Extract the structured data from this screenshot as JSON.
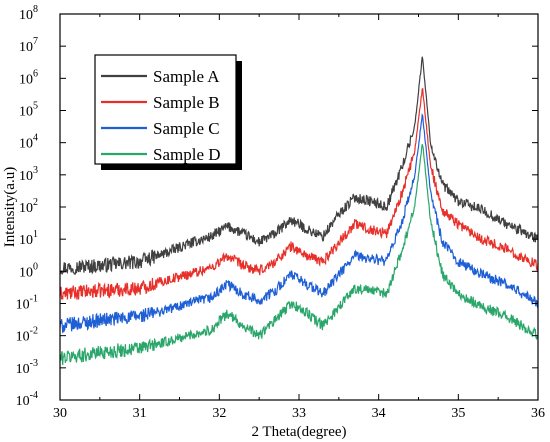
{
  "chart_data": {
    "type": "line",
    "title": "",
    "xlabel": "2 Theta(degree)",
    "ylabel": "Intensity(a.u)",
    "xlim": [
      30,
      36
    ],
    "ylim_log10": [
      -4,
      8
    ],
    "yscale": "log",
    "grid": false,
    "legend_position": "top-left",
    "x_ticks": [
      "30",
      "31",
      "32",
      "33",
      "34",
      "35",
      "36"
    ],
    "y_ticks": [
      {
        "base": "10",
        "exp": "-4"
      },
      {
        "base": "10",
        "exp": "-3"
      },
      {
        "base": "10",
        "exp": "-2"
      },
      {
        "base": "10",
        "exp": "-1"
      },
      {
        "base": "10",
        "exp": "0"
      },
      {
        "base": "10",
        "exp": "1"
      },
      {
        "base": "10",
        "exp": "2"
      },
      {
        "base": "10",
        "exp": "3"
      },
      {
        "base": "10",
        "exp": "4"
      },
      {
        "base": "10",
        "exp": "5"
      },
      {
        "base": "10",
        "exp": "6"
      },
      {
        "base": "10",
        "exp": "7"
      },
      {
        "base": "10",
        "exp": "8"
      }
    ],
    "x": [
      30.0,
      30.5,
      31.0,
      31.3,
      31.6,
      31.9,
      32.1,
      32.3,
      32.5,
      32.7,
      32.9,
      33.1,
      33.3,
      33.5,
      33.7,
      33.9,
      34.1,
      34.3,
      34.45,
      34.55,
      34.65,
      34.8,
      35.0,
      35.3,
      35.6,
      36.0
    ],
    "series": [
      {
        "name": "Sample A",
        "color": "#404040",
        "values": [
          1.3,
          1.5,
          2.0,
          3.5,
          7,
          12,
          25,
          15,
          8,
          15,
          40,
          20,
          12,
          60,
          200,
          150,
          100,
          2000,
          30000,
          5000000,
          10000,
          500,
          150,
          80,
          30,
          10
        ]
      },
      {
        "name": "Sample B",
        "color": "#e8302a",
        "values": [
          0.2,
          0.25,
          0.3,
          0.5,
          0.8,
          1.3,
          3,
          1.5,
          1.0,
          2.0,
          6,
          3,
          2.0,
          8,
          30,
          20,
          15,
          300,
          5000,
          500000,
          2000,
          80,
          30,
          10,
          5,
          1.5
        ]
      },
      {
        "name": "Sample C",
        "color": "#1f5fd6",
        "values": [
          0.02,
          0.03,
          0.04,
          0.06,
          0.1,
          0.15,
          0.4,
          0.2,
          0.12,
          0.25,
          0.8,
          0.4,
          0.2,
          0.8,
          3,
          2.5,
          2,
          40,
          800,
          80000,
          300,
          8,
          2,
          0.8,
          0.4,
          0.1
        ]
      },
      {
        "name": "Sample D",
        "color": "#2aa66a",
        "values": [
          0.002,
          0.003,
          0.004,
          0.006,
          0.01,
          0.015,
          0.05,
          0.02,
          0.01,
          0.03,
          0.1,
          0.05,
          0.02,
          0.08,
          0.3,
          0.25,
          0.2,
          5,
          100,
          10000,
          40,
          0.8,
          0.2,
          0.08,
          0.04,
          0.01
        ]
      }
    ]
  }
}
